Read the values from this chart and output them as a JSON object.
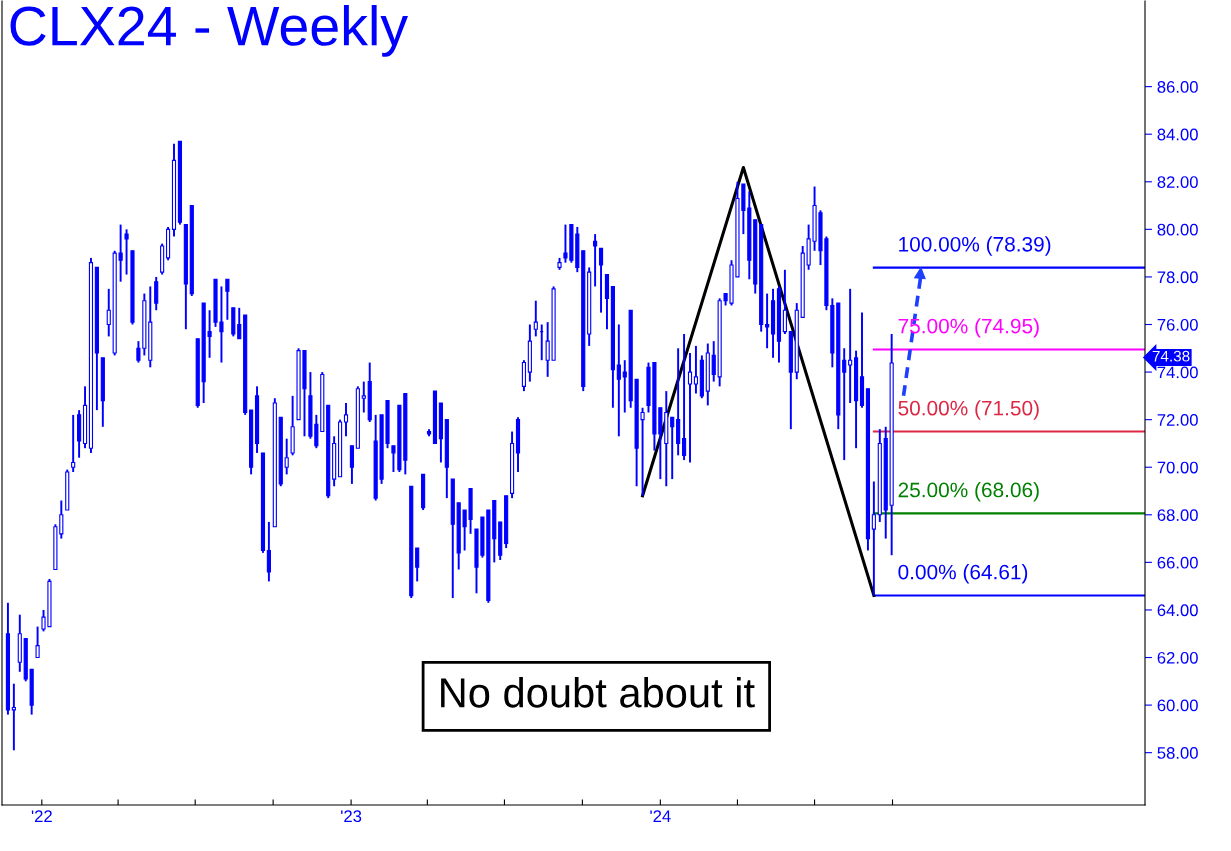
{
  "chart_data": {
    "type": "candlestick",
    "title": "CLX24 - Weekly",
    "x": [
      "2021-11-22",
      "2021-11-29",
      "2021-12-06",
      "2021-12-13",
      "2021-12-20",
      "2021-12-27",
      "2022-01-03",
      "2022-01-10",
      "2022-01-17",
      "2022-01-24",
      "2022-01-31",
      "2022-02-07",
      "2022-02-14",
      "2022-02-21",
      "2022-02-28",
      "2022-03-07",
      "2022-03-14",
      "2022-03-21",
      "2022-03-28",
      "2022-04-04",
      "2022-04-11",
      "2022-04-18",
      "2022-04-25",
      "2022-05-02",
      "2022-05-09",
      "2022-05-16",
      "2022-05-23",
      "2022-05-30",
      "2022-06-06",
      "2022-06-13",
      "2022-06-20",
      "2022-06-27",
      "2022-07-04",
      "2022-07-11",
      "2022-07-18",
      "2022-07-25",
      "2022-08-01",
      "2022-08-08",
      "2022-08-15",
      "2022-08-22",
      "2022-08-29",
      "2022-09-05",
      "2022-09-12",
      "2022-09-19",
      "2022-09-26",
      "2022-10-03",
      "2022-10-10",
      "2022-10-17",
      "2022-10-24",
      "2022-10-31",
      "2022-11-07",
      "2022-11-14",
      "2022-11-21",
      "2022-11-28",
      "2022-12-05",
      "2022-12-12",
      "2022-12-19",
      "2022-12-26",
      "2023-01-02",
      "2023-01-09",
      "2023-01-16",
      "2023-01-23",
      "2023-01-30",
      "2023-02-06",
      "2023-02-13",
      "2023-02-20",
      "2023-02-27",
      "2023-03-06",
      "2023-03-13",
      "2023-03-20",
      "2023-03-27",
      "2023-04-03",
      "2023-04-10",
      "2023-04-17",
      "2023-04-24",
      "2023-05-01",
      "2023-05-08",
      "2023-05-15",
      "2023-05-22",
      "2023-05-29",
      "2023-06-05",
      "2023-06-12",
      "2023-06-19",
      "2023-06-26",
      "2023-07-03",
      "2023-07-10",
      "2023-07-17",
      "2023-07-24",
      "2023-07-31",
      "2023-08-07",
      "2023-08-14",
      "2023-08-21",
      "2023-08-28",
      "2023-09-04",
      "2023-09-11",
      "2023-09-18",
      "2023-09-25",
      "2023-10-02",
      "2023-10-09",
      "2023-10-16",
      "2023-10-23",
      "2023-10-30",
      "2023-11-06",
      "2023-11-13",
      "2023-11-20",
      "2023-11-27",
      "2023-12-04",
      "2023-12-11",
      "2023-12-18",
      "2023-12-25",
      "2024-01-01",
      "2024-01-08",
      "2024-01-15",
      "2024-01-22",
      "2024-01-29",
      "2024-02-05",
      "2024-02-12",
      "2024-02-19",
      "2024-02-26",
      "2024-03-04",
      "2024-03-11",
      "2024-03-18",
      "2024-03-25",
      "2024-04-01",
      "2024-04-08",
      "2024-04-15",
      "2024-04-22",
      "2024-04-29",
      "2024-05-06",
      "2024-05-13",
      "2024-05-20",
      "2024-05-27",
      "2024-06-03",
      "2024-06-10",
      "2024-06-17",
      "2024-06-24",
      "2024-07-01",
      "2024-07-08",
      "2024-07-15",
      "2024-07-22",
      "2024-07-29",
      "2024-08-05",
      "2024-08-12",
      "2024-08-19",
      "2024-08-26",
      "2024-09-02",
      "2024-09-09",
      "2024-09-16",
      "2024-09-23",
      "2024-09-30"
    ],
    "ohlc": [
      [
        63.0,
        64.3,
        59.6,
        59.8
      ],
      [
        59.8,
        60.9,
        58.1,
        59.9
      ],
      [
        61.8,
        63.8,
        61.4,
        63.0
      ],
      [
        62.8,
        62.8,
        61.0,
        61.1
      ],
      [
        61.5,
        61.5,
        59.6,
        60.0
      ],
      [
        62.0,
        63.3,
        62.0,
        62.5
      ],
      [
        63.2,
        64.0,
        63.1,
        63.7
      ],
      [
        63.3,
        65.3,
        63.3,
        65.2
      ],
      [
        65.7,
        67.6,
        65.7,
        67.5
      ],
      [
        67.2,
        68.6,
        67.0,
        68.0
      ],
      [
        68.2,
        69.9,
        68.2,
        69.8
      ],
      [
        70.0,
        72.2,
        69.8,
        70.2
      ],
      [
        72.2,
        72.4,
        70.4,
        71.1
      ],
      [
        71.0,
        73.4,
        70.8,
        72.6
      ],
      [
        70.8,
        78.8,
        70.6,
        78.6
      ],
      [
        78.4,
        78.4,
        72.4,
        74.8
      ],
      [
        74.6,
        74.6,
        71.7,
        72.8
      ],
      [
        76.0,
        77.5,
        75.5,
        76.6
      ],
      [
        74.8,
        79.1,
        74.7,
        79.0
      ],
      [
        79.0,
        80.2,
        77.8,
        78.7
      ],
      [
        79.8,
        80.0,
        78.1,
        79.6
      ],
      [
        79.1,
        79.1,
        76.0,
        76.1
      ],
      [
        75.0,
        75.3,
        74.4,
        74.5
      ],
      [
        75.0,
        77.3,
        74.7,
        77.0
      ],
      [
        74.5,
        77.6,
        74.2,
        76.1
      ],
      [
        77.8,
        78.0,
        76.6,
        76.9
      ],
      [
        78.2,
        79.4,
        78.1,
        79.3
      ],
      [
        78.8,
        80.1,
        78.7,
        80.0
      ],
      [
        80.0,
        83.6,
        79.7,
        82.9
      ],
      [
        83.7,
        83.7,
        80.2,
        80.3
      ],
      [
        80.2,
        80.2,
        75.8,
        77.7
      ],
      [
        81.0,
        81.0,
        77.2,
        77.3
      ],
      [
        75.4,
        75.4,
        72.5,
        72.6
      ],
      [
        76.9,
        76.9,
        72.7,
        73.6
      ],
      [
        75.7,
        76.6,
        74.6,
        75.5
      ],
      [
        77.9,
        77.9,
        75.9,
        76.1
      ],
      [
        76.1,
        77.6,
        74.4,
        75.7
      ],
      [
        77.9,
        77.9,
        76.2,
        77.4
      ],
      [
        76.7,
        76.7,
        75.5,
        75.6
      ],
      [
        76.0,
        76.7,
        75.4,
        75.4
      ],
      [
        76.4,
        76.4,
        72.2,
        72.3
      ],
      [
        72.4,
        72.4,
        69.7,
        70.0
      ],
      [
        73.0,
        73.4,
        70.6,
        71.0
      ],
      [
        70.6,
        70.6,
        66.4,
        66.5
      ],
      [
        66.5,
        67.7,
        65.2,
        65.6
      ],
      [
        67.5,
        72.9,
        67.5,
        72.7
      ],
      [
        72.1,
        72.1,
        69.2,
        69.3
      ],
      [
        70.0,
        71.2,
        69.7,
        70.4
      ],
      [
        70.6,
        73.0,
        70.5,
        71.7
      ],
      [
        72.0,
        75.0,
        72.0,
        74.9
      ],
      [
        74.9,
        74.9,
        71.3,
        73.3
      ],
      [
        73.0,
        74.0,
        71.2,
        71.3
      ],
      [
        71.8,
        72.2,
        70.8,
        70.9
      ],
      [
        71.5,
        74.0,
        71.5,
        73.9
      ],
      [
        72.6,
        72.6,
        68.7,
        68.8
      ],
      [
        69.5,
        71.3,
        69.2,
        71.0
      ],
      [
        69.6,
        72.0,
        69.6,
        71.9
      ],
      [
        71.9,
        72.7,
        71.3,
        72.2
      ],
      [
        70.9,
        70.9,
        69.3,
        70.0
      ],
      [
        70.8,
        73.4,
        70.8,
        73.3
      ],
      [
        72.9,
        73.6,
        72.3,
        73.0
      ],
      [
        73.6,
        74.4,
        71.9,
        72.0
      ],
      [
        71.1,
        72.2,
        68.6,
        68.7
      ],
      [
        72.2,
        72.2,
        69.3,
        69.5
      ],
      [
        72.8,
        72.8,
        70.8,
        71.0
      ],
      [
        70.9,
        70.9,
        69.8,
        70.6
      ],
      [
        72.6,
        72.6,
        69.8,
        69.9
      ],
      [
        73.1,
        73.1,
        69.7,
        70.3
      ],
      [
        69.2,
        69.2,
        64.5,
        64.6
      ],
      [
        66.6,
        66.6,
        65.2,
        65.8
      ],
      [
        69.7,
        69.7,
        68.2,
        68.3
      ],
      [
        71.5,
        71.6,
        71.3,
        71.4
      ],
      [
        73.2,
        73.2,
        71.0,
        71.0
      ],
      [
        72.7,
        72.7,
        70.2,
        71.2
      ],
      [
        72.0,
        72.0,
        68.7,
        70.0
      ],
      [
        69.5,
        69.5,
        64.5,
        67.6
      ],
      [
        68.5,
        68.5,
        65.7,
        66.4
      ],
      [
        68.2,
        68.2,
        66.5,
        67.5
      ],
      [
        69.1,
        69.1,
        67.2,
        67.8
      ],
      [
        67.4,
        67.4,
        64.7,
        65.8
      ],
      [
        67.9,
        67.9,
        66.2,
        66.3
      ],
      [
        68.2,
        68.2,
        64.3,
        64.4
      ],
      [
        68.6,
        68.6,
        66.0,
        67.0
      ],
      [
        67.7,
        67.7,
        66.1,
        66.3
      ],
      [
        68.8,
        68.8,
        66.6,
        66.8
      ],
      [
        68.9,
        71.5,
        68.7,
        71.0
      ],
      [
        72.0,
        72.1,
        69.8,
        70.6
      ],
      [
        73.4,
        74.5,
        73.2,
        74.4
      ],
      [
        74.0,
        76.0,
        73.6,
        75.3
      ],
      [
        75.8,
        77.0,
        75.5,
        76.1
      ],
      [
        75.7,
        76.0,
        74.5,
        75.7
      ],
      [
        74.5,
        76.1,
        73.8,
        75.3
      ],
      [
        74.5,
        77.6,
        74.5,
        77.5
      ],
      [
        78.4,
        78.8,
        78.3,
        78.6
      ],
      [
        79.0,
        80.2,
        78.6,
        78.8
      ],
      [
        80.2,
        80.2,
        78.6,
        78.7
      ],
      [
        79.8,
        80.1,
        78.2,
        78.4
      ],
      [
        79.1,
        79.1,
        73.2,
        73.4
      ],
      [
        75.6,
        78.4,
        75.1,
        78.2
      ],
      [
        79.5,
        79.8,
        77.6,
        79.3
      ],
      [
        79.2,
        79.2,
        76.5,
        78.5
      ],
      [
        78.1,
        78.1,
        75.8,
        77.1
      ],
      [
        77.6,
        77.6,
        72.5,
        74.1
      ],
      [
        74.3,
        76.0,
        71.3,
        73.7
      ],
      [
        74.0,
        74.5,
        72.3,
        73.8
      ],
      [
        76.6,
        76.6,
        72.5,
        72.8
      ],
      [
        73.7,
        73.7,
        69.2,
        70.8
      ],
      [
        72.0,
        72.5,
        68.8,
        72.3
      ],
      [
        74.2,
        74.4,
        72.3,
        72.6
      ],
      [
        74.4,
        74.4,
        70.7,
        71.4
      ],
      [
        72.5,
        72.5,
        69.5,
        71.4
      ],
      [
        71.0,
        73.2,
        69.2,
        72.3
      ],
      [
        72.1,
        72.1,
        69.5,
        71.7
      ],
      [
        72.0,
        75.0,
        70.5,
        71.0
      ],
      [
        71.2,
        75.6,
        70.3,
        70.5
      ],
      [
        73.5,
        74.8,
        70.2,
        74.0
      ],
      [
        73.5,
        75.1,
        73.1,
        73.8
      ],
      [
        74.5,
        74.7,
        72.9,
        73.0
      ],
      [
        73.2,
        75.2,
        72.6,
        74.8
      ],
      [
        74.7,
        75.3,
        73.6,
        73.9
      ],
      [
        73.8,
        77.1,
        73.4,
        77.0
      ],
      [
        77.3,
        77.3,
        76.8,
        77.0
      ],
      [
        76.9,
        78.7,
        76.8,
        78.5
      ],
      [
        78.0,
        82.0,
        78.0,
        81.3
      ],
      [
        81.9,
        81.9,
        79.8,
        80.8
      ],
      [
        80.9,
        81.6,
        77.9,
        78.7
      ],
      [
        80.4,
        80.4,
        77.3,
        77.7
      ],
      [
        80.2,
        80.2,
        75.7,
        76.0
      ],
      [
        76.0,
        77.3,
        75.0,
        75.9
      ],
      [
        77.0,
        77.5,
        74.6,
        75.6
      ],
      [
        77.5,
        77.6,
        74.4,
        75.3
      ],
      [
        75.7,
        78.3,
        75.6,
        76.6
      ],
      [
        75.7,
        75.7,
        71.6,
        74.0
      ],
      [
        74.0,
        76.9,
        73.7,
        76.6
      ],
      [
        76.3,
        79.3,
        76.3,
        79.0
      ],
      [
        78.5,
        80.2,
        78.3,
        79.6
      ],
      [
        79.5,
        81.8,
        79.1,
        81.0
      ],
      [
        80.7,
        80.8,
        78.5,
        79.1
      ],
      [
        79.6,
        79.7,
        76.6,
        76.8
      ],
      [
        76.8,
        77.1,
        74.2,
        74.8
      ],
      [
        76.9,
        76.9,
        71.6,
        72.2
      ],
      [
        74.5,
        75.0,
        70.3,
        74.0
      ],
      [
        74.3,
        77.5,
        72.7,
        74.5
      ],
      [
        74.6,
        74.9,
        70.8,
        72.8
      ],
      [
        73.8,
        76.5,
        72.5,
        72.6
      ],
      [
        73.3,
        73.3,
        66.5,
        67.0
      ],
      [
        67.4,
        69.4,
        64.6,
        68.0
      ],
      [
        68.0,
        71.6,
        67.7,
        71.0
      ],
      [
        71.2,
        71.7,
        67.0,
        68.2
      ],
      [
        68.4,
        75.6,
        66.3,
        74.38
      ]
    ],
    "color": "#0000ff",
    "series": [
      {
        "type": "line",
        "color": "#000000",
        "x": [
          "2023-12-11",
          "2024-04-08",
          "2024-09-09"
        ],
        "values": [
          68.8,
          82.6,
          64.61
        ]
      },
      {
        "type": "line",
        "color": "#1f3fff",
        "line_style": "dashed",
        "x": [
          "2024-10-14",
          "2024-11-04"
        ],
        "values": [
          73.0,
          78.2
        ]
      }
    ],
    "ref_lines": [
      {
        "axis": "y",
        "value": 78.39,
        "label": "100.00% (78.39)",
        "color": "#0000ff"
      },
      {
        "axis": "y",
        "value": 74.95,
        "label": "75.00% (74.95)",
        "color": "#ff00ff"
      },
      {
        "axis": "y",
        "value": 71.5,
        "label": "50.00% (71.50)",
        "color": "#dc2845"
      },
      {
        "axis": "y",
        "value": 68.06,
        "label": "25.00% (68.06)",
        "color": "#008000"
      },
      {
        "axis": "y",
        "value": 64.61,
        "label": "0.00% (64.61)",
        "color": "#0000ff"
      }
    ],
    "annotations": [
      "No doubt about it",
      "74.38"
    ],
    "xlim": [
      "2021-11-15",
      "2025-07-26"
    ],
    "xticks": [
      {
        "value": "2022-01-01",
        "label": "'22"
      },
      {
        "value": "2022-04-01",
        "label": null
      },
      {
        "value": "2022-07-01",
        "label": null
      },
      {
        "value": "2022-10-01",
        "label": null
      },
      {
        "value": "2023-01-01",
        "label": "'23"
      },
      {
        "value": "2023-04-01",
        "label": null
      },
      {
        "value": "2023-07-01",
        "label": null
      },
      {
        "value": "2023-10-01",
        "label": null
      },
      {
        "value": "2024-01-01",
        "label": "'24"
      },
      {
        "value": "2024-04-01",
        "label": null
      },
      {
        "value": "2024-07-01",
        "label": null
      },
      {
        "value": "2024-10-01",
        "label": null
      }
    ],
    "ylim": [
      55.8,
      89.6
    ],
    "yticks": [
      {
        "value": 58,
        "label": "58.00"
      },
      {
        "value": 60,
        "label": "60.00"
      },
      {
        "value": 62,
        "label": "62.00"
      },
      {
        "value": 64,
        "label": "64.00"
      },
      {
        "value": 66,
        "label": "66.00"
      },
      {
        "value": 68,
        "label": "68.00"
      },
      {
        "value": 70,
        "label": "70.00"
      },
      {
        "value": 72,
        "label": "72.00"
      },
      {
        "value": 74,
        "label": "74.00"
      },
      {
        "value": 76,
        "label": "76.00"
      },
      {
        "value": 78,
        "label": "78.00"
      },
      {
        "value": 80,
        "label": "80.00"
      },
      {
        "value": 82,
        "label": "82.00"
      },
      {
        "value": 84,
        "label": "84.00"
      },
      {
        "value": 86,
        "label": "86.00"
      }
    ],
    "grid": false,
    "legend": false
  }
}
